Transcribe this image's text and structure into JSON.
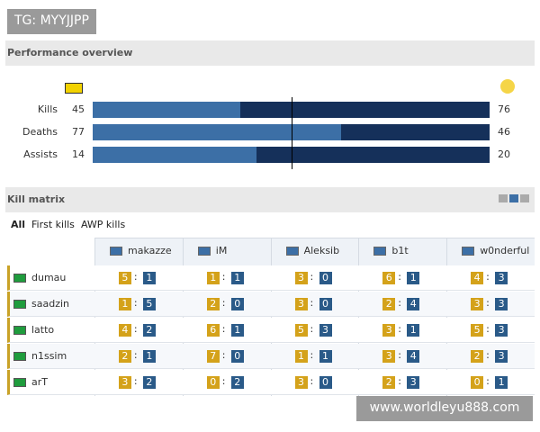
{
  "watermark_top": "TG: MYYJJPP",
  "performance": {
    "title": "Performance overview",
    "rows": [
      {
        "label": "Kills",
        "left": 45,
        "right": 76
      },
      {
        "label": "Deaths",
        "left": 77,
        "right": 46
      },
      {
        "label": "Assists",
        "left": 14,
        "right": 20
      }
    ]
  },
  "kill_matrix": {
    "title": "Kill matrix",
    "tabs": [
      "All",
      "First kills",
      "AWP kills"
    ],
    "separator": ":",
    "columns": [
      "makazze",
      "iM",
      "Aleksib",
      "b1t",
      "w0nderful"
    ],
    "rows": [
      {
        "player": "dumau",
        "cells": [
          [
            5,
            1
          ],
          [
            1,
            1
          ],
          [
            3,
            0
          ],
          [
            6,
            1
          ],
          [
            4,
            3
          ]
        ]
      },
      {
        "player": "saadzin",
        "cells": [
          [
            1,
            5
          ],
          [
            2,
            0
          ],
          [
            3,
            0
          ],
          [
            2,
            4
          ],
          [
            3,
            3
          ]
        ]
      },
      {
        "player": "latto",
        "cells": [
          [
            4,
            2
          ],
          [
            6,
            1
          ],
          [
            5,
            3
          ],
          [
            3,
            1
          ],
          [
            5,
            3
          ]
        ]
      },
      {
        "player": "n1ssim",
        "cells": [
          [
            2,
            1
          ],
          [
            7,
            0
          ],
          [
            1,
            1
          ],
          [
            3,
            4
          ],
          [
            2,
            3
          ]
        ]
      },
      {
        "player": "arT",
        "cells": [
          [
            3,
            2
          ],
          [
            0,
            2
          ],
          [
            3,
            0
          ],
          [
            2,
            3
          ],
          [
            0,
            1
          ]
        ]
      }
    ]
  },
  "watermark_bottom": "www.worldleyu888.com"
}
